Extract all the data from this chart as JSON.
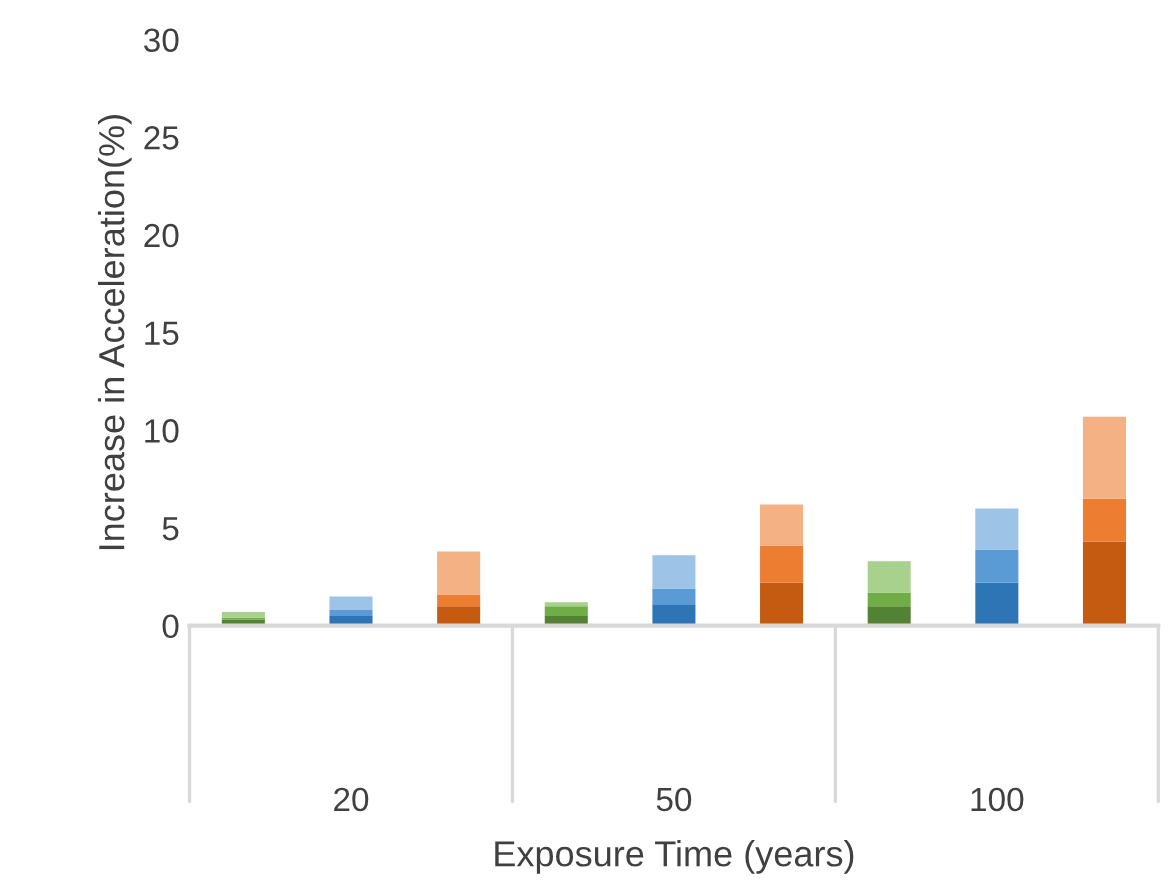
{
  "chart_data": {
    "type": "bar",
    "stacked": true,
    "xlabel": "Exposure Time (years)",
    "ylabel": "Increase in Acceleration(%)",
    "categories": [
      null,
      "20",
      null,
      null,
      "50",
      null,
      null,
      "100",
      null
    ],
    "series": [
      {
        "colors": [
          "#548235",
          "#2e75b6",
          "#c55a11",
          "#548235",
          "#2e75b6",
          "#c55a11",
          "#548235",
          "#2e75b6",
          "#c55a11"
        ],
        "values": [
          0.3,
          0.5,
          1.0,
          0.5,
          1.1,
          2.2,
          1.0,
          2.2,
          4.3
        ]
      },
      {
        "colors": [
          "#70ad47",
          "#5b9bd5",
          "#ed7d31",
          "#70ad47",
          "#5b9bd5",
          "#ed7d31",
          "#70ad47",
          "#5b9bd5",
          "#ed7d31"
        ],
        "values": [
          0.1,
          0.3,
          0.6,
          0.5,
          0.8,
          1.9,
          0.7,
          1.7,
          2.2
        ]
      },
      {
        "colors": [
          "#a9d18e",
          "#9dc3e6",
          "#f4b183",
          "#a9d18e",
          "#9dc3e6",
          "#f4b183",
          "#a9d18e",
          "#9dc3e6",
          "#f4b183"
        ],
        "values": [
          0.3,
          0.7,
          2.2,
          0.2,
          1.7,
          2.1,
          1.6,
          2.1,
          4.2
        ]
      }
    ],
    "ylim": [
      0,
      30
    ],
    "yticks": [
      0,
      5,
      10,
      15,
      20,
      25,
      30
    ],
    "grid": false,
    "legend": false
  }
}
